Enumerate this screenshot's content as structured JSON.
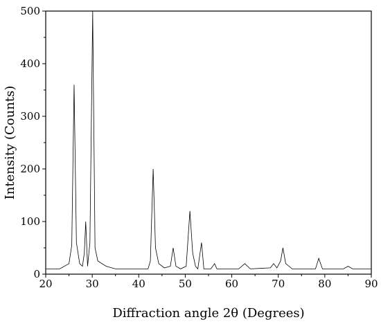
{
  "chart_data": {
    "type": "line",
    "title": "",
    "xlabel": "Diffraction angle 2θ (Degrees)",
    "ylabel": "Intensity (Counts)",
    "xlim": [
      20,
      90
    ],
    "ylim": [
      0,
      500
    ],
    "grid": false,
    "x_ticks": [
      "20",
      "30",
      "40",
      "50",
      "60",
      "70",
      "80",
      "90"
    ],
    "y_ticks": [
      "0",
      "100",
      "200",
      "300",
      "400",
      "500"
    ],
    "series": [
      {
        "color": "#000000",
        "points": [
          [
            20,
            10
          ],
          [
            23,
            10
          ],
          [
            25,
            20
          ],
          [
            25.6,
            55
          ],
          [
            26.1,
            360
          ],
          [
            26.6,
            60
          ],
          [
            27.3,
            20
          ],
          [
            27.9,
            15
          ],
          [
            28.3,
            40
          ],
          [
            28.6,
            100
          ],
          [
            29.0,
            15
          ],
          [
            29.5,
            60
          ],
          [
            30.1,
            500
          ],
          [
            30.6,
            50
          ],
          [
            31.2,
            25
          ],
          [
            33,
            15
          ],
          [
            35,
            10
          ],
          [
            42,
            10
          ],
          [
            42.5,
            25
          ],
          [
            43.1,
            200
          ],
          [
            43.6,
            50
          ],
          [
            44.3,
            20
          ],
          [
            45.5,
            12
          ],
          [
            46.8,
            15
          ],
          [
            47.4,
            50
          ],
          [
            48.0,
            15
          ],
          [
            49.0,
            10
          ],
          [
            50.2,
            15
          ],
          [
            51.0,
            120
          ],
          [
            51.6,
            40
          ],
          [
            52.2,
            15
          ],
          [
            52.7,
            10
          ],
          [
            53.5,
            60
          ],
          [
            54.0,
            10
          ],
          [
            55.5,
            10
          ],
          [
            56.3,
            20
          ],
          [
            56.8,
            10
          ],
          [
            61.5,
            10
          ],
          [
            62.8,
            20
          ],
          [
            64.0,
            10
          ],
          [
            68.3,
            12
          ],
          [
            69.0,
            20
          ],
          [
            69.7,
            12
          ],
          [
            70.5,
            25
          ],
          [
            71.0,
            50
          ],
          [
            71.6,
            20
          ],
          [
            73.0,
            10
          ],
          [
            78.0,
            10
          ],
          [
            78.7,
            30
          ],
          [
            79.5,
            10
          ],
          [
            84.0,
            10
          ],
          [
            85.0,
            15
          ],
          [
            86.0,
            10
          ],
          [
            90,
            10
          ]
        ]
      }
    ]
  }
}
